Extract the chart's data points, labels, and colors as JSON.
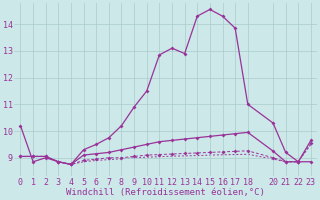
{
  "bg_color": "#cce8e8",
  "line_color": "#993399",
  "grid_color": "#aacccc",
  "xlabel": "Windchill (Refroidissement éolien,°C)",
  "xlabel_fontsize": 6.5,
  "tick_fontsize": 6,
  "xlim": [
    -0.5,
    23.5
  ],
  "ylim": [
    8.3,
    14.8
  ],
  "yticks": [
    9,
    10,
    11,
    12,
    13,
    14
  ],
  "xticks": [
    0,
    1,
    2,
    3,
    4,
    5,
    6,
    7,
    8,
    9,
    10,
    11,
    12,
    13,
    14,
    15,
    16,
    17,
    18,
    20,
    21,
    22,
    23
  ],
  "line1_x": [
    0,
    1,
    2,
    3,
    4,
    5,
    6,
    7,
    8,
    9,
    10,
    11,
    12,
    13,
    14,
    15,
    16,
    17,
    18,
    20,
    21,
    22,
    23
  ],
  "line1_y": [
    10.2,
    8.85,
    9.0,
    8.85,
    8.75,
    9.3,
    9.5,
    9.75,
    10.2,
    10.9,
    11.5,
    12.85,
    13.1,
    12.9,
    14.3,
    14.55,
    14.3,
    13.85,
    11.0,
    10.3,
    9.2,
    8.85,
    8.85
  ],
  "line2_x": [
    0,
    1,
    2,
    3,
    4,
    5,
    6,
    7,
    8,
    9,
    10,
    11,
    12,
    13,
    14,
    15,
    16,
    17,
    18,
    20,
    21,
    22,
    23
  ],
  "line2_y": [
    9.05,
    9.05,
    9.05,
    8.85,
    8.75,
    9.1,
    9.15,
    9.2,
    9.3,
    9.4,
    9.5,
    9.6,
    9.65,
    9.7,
    9.75,
    9.8,
    9.85,
    9.9,
    9.95,
    9.25,
    8.85,
    8.85,
    9.65
  ],
  "line3_x": [
    0,
    1,
    2,
    3,
    4,
    5,
    6,
    7,
    8,
    9,
    10,
    11,
    12,
    13,
    14,
    15,
    16,
    17,
    18,
    20,
    21,
    22,
    23
  ],
  "line3_y": [
    9.05,
    9.05,
    9.05,
    8.85,
    8.75,
    8.9,
    8.95,
    9.0,
    9.0,
    9.05,
    9.1,
    9.12,
    9.14,
    9.16,
    9.18,
    9.2,
    9.22,
    9.24,
    9.26,
    9.0,
    8.85,
    8.85,
    9.55
  ],
  "line4_x": [
    0,
    1,
    2,
    3,
    4,
    5,
    6,
    7,
    8,
    9,
    10,
    11,
    12,
    13,
    14,
    15,
    16,
    17,
    18,
    20,
    21,
    22,
    23
  ],
  "line4_y": [
    9.05,
    9.05,
    9.05,
    8.85,
    8.75,
    8.85,
    8.9,
    8.93,
    8.96,
    9.0,
    9.02,
    9.04,
    9.06,
    9.07,
    9.08,
    9.1,
    9.11,
    9.12,
    9.13,
    8.95,
    8.85,
    8.85,
    9.5
  ]
}
